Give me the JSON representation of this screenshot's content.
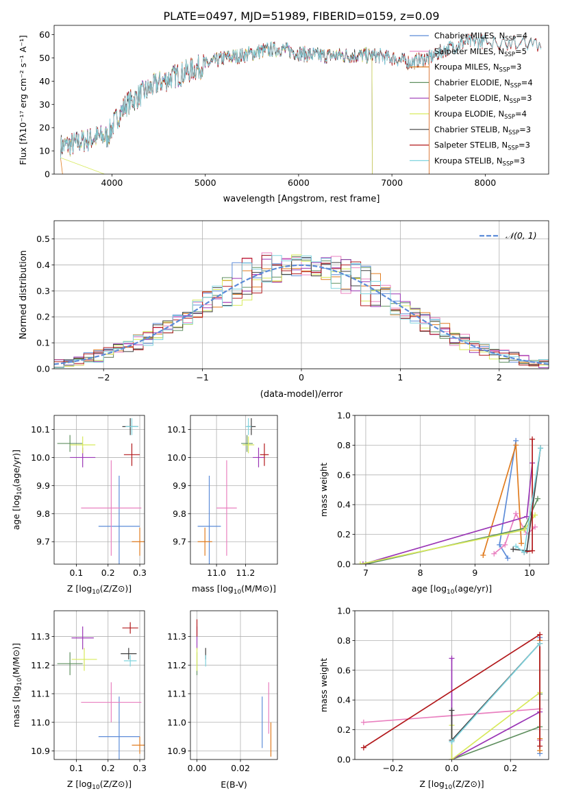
{
  "title": "PLATE=0497, MJD=51989, FIBERID=0159, z=0.09",
  "colors": {
    "chabrier_miles": "#5b8bd8",
    "salpeter_miles": "#e97fbf",
    "kroupa_miles": "#e07b1e",
    "chabrier_elodie": "#5f8f5f",
    "salpeter_elodie": "#9a35b5",
    "kroupa_elodie": "#d7e95a",
    "chabrier_stelib": "#3e3e3e",
    "salpeter_stelib": "#b2181b",
    "kroupa_stelib": "#7fd3de",
    "normal_curve": "#5b8bd8"
  },
  "chart_data": [
    {
      "id": "spectrum",
      "type": "line",
      "xlabel": "wavelength [Angstrom, rest frame]",
      "ylabel": "Flux [fλ10⁻¹⁷ erg cm⁻² s⁻¹ A⁻¹]",
      "xlim": [
        3380,
        8680
      ],
      "ylim": [
        0,
        64
      ],
      "xticks": [
        "4000",
        "5000",
        "6000",
        "7000",
        "8000"
      ],
      "xtick_values": [
        4000,
        5000,
        6000,
        7000,
        8000
      ],
      "yticks": [
        "0",
        "10",
        "20",
        "30",
        "40",
        "50",
        "60"
      ],
      "ytick_values": [
        0,
        10,
        20,
        30,
        40,
        50,
        60
      ],
      "grid": false,
      "legend_position": "top-right",
      "continuum": {
        "x": [
          3450,
          3600,
          3750,
          3850,
          3950,
          4050,
          4150,
          4300,
          4450,
          4600,
          4800,
          5000,
          5200,
          5400,
          5600,
          5800,
          6000,
          6200,
          6400,
          6600,
          6800,
          7000,
          7200,
          7400,
          7600,
          7800,
          8000,
          8200,
          8400,
          8600
        ],
        "y": [
          12,
          13,
          15,
          16,
          16,
          24,
          30,
          34,
          38,
          41,
          44,
          47,
          50,
          51,
          53,
          54,
          52,
          51,
          51,
          51,
          51,
          50,
          48,
          50,
          54,
          57,
          57,
          57,
          56,
          56
        ]
      },
      "series": [
        {
          "name": "Chabrier MILES, N_SSP=4",
          "label_main": "Chabrier MILES, N",
          "label_sub": "SSP",
          "label_end": "=4",
          "color_key": "chabrier_miles",
          "x_end": 7400
        },
        {
          "name": "Salpeter MILES, N_SSP=5",
          "label_main": "Salpeter MILES, N",
          "label_sub": "SSP",
          "label_end": "=5",
          "color_key": "salpeter_miles",
          "x_end": 7400
        },
        {
          "name": "Kroupa MILES, N_SSP=3",
          "label_main": "Kroupa MILES, N",
          "label_sub": "SSP",
          "label_end": "=3",
          "color_key": "kroupa_miles",
          "x_end": 7400
        },
        {
          "name": "Chabrier ELODIE, N_SSP=4",
          "label_main": "Chabrier ELODIE, N",
          "label_sub": "SSP",
          "label_end": "=4",
          "color_key": "chabrier_elodie",
          "x_end": 6790
        },
        {
          "name": "Salpeter ELODIE, N_SSP=3",
          "label_main": "Salpeter ELODIE, N",
          "label_sub": "SSP",
          "label_end": "=3",
          "color_key": "salpeter_elodie",
          "x_end": 6790
        },
        {
          "name": "Kroupa ELODIE, N_SSP=4",
          "label_main": "Kroupa ELODIE, N",
          "label_sub": "SSP",
          "label_end": "=4",
          "color_key": "kroupa_elodie",
          "x_end": 6790
        },
        {
          "name": "Chabrier STELIB, N_SSP=3",
          "label_main": "Chabrier STELIB, N",
          "label_sub": "SSP",
          "label_end": "=3",
          "color_key": "chabrier_stelib",
          "x_end": 8600
        },
        {
          "name": "Salpeter STELIB, N_SSP=3",
          "label_main": "Salpeter STELIB, N",
          "label_sub": "SSP",
          "label_end": "=3",
          "color_key": "salpeter_stelib",
          "x_end": 8600
        },
        {
          "name": "Kroupa STELIB, N_SSP=3",
          "label_main": "Kroupa STELIB, N",
          "label_sub": "SSP",
          "label_end": "=3",
          "color_key": "kroupa_stelib",
          "x_end": 8600
        }
      ]
    },
    {
      "id": "residuals",
      "type": "histogram",
      "xlabel": "(data-model)/error",
      "ylabel": "Normed distribution",
      "xlim": [
        -2.5,
        2.5
      ],
      "ylim": [
        0,
        0.57
      ],
      "xticks": [
        "−2",
        "−1",
        "0",
        "1",
        "2"
      ],
      "xtick_values": [
        -2,
        -1,
        0,
        1,
        2
      ],
      "yticks": [
        "0.0",
        "0.1",
        "0.2",
        "0.3",
        "0.4",
        "0.5"
      ],
      "ytick_values": [
        0,
        0.1,
        0.2,
        0.3,
        0.4,
        0.5
      ],
      "grid": true,
      "bin_width": 0.1,
      "legend": {
        "label": "𝒩(0, 1)",
        "position": "top-right"
      },
      "max_deviation": [
        0.02,
        0.02,
        0.025,
        0.03,
        0.03,
        0.03,
        0.035,
        0.05,
        0.06,
        0.075,
        0.1,
        0.085,
        0.06,
        0.05,
        0.05,
        0.05,
        0.07,
        0.09,
        0.11,
        0.09,
        0.06,
        0.05,
        0.05,
        0.045,
        0.04,
        0.035,
        0.03,
        0.03,
        0.025,
        0.02
      ]
    },
    {
      "id": "age_vs_Z",
      "type": "errorbar",
      "xlabel_main": "Z [log",
      "xlabel_sub": "10",
      "xlabel_end": "(Z/Z⊙)]",
      "ylabel_main": "age  [log",
      "ylabel_sub": "10",
      "ylabel_end": "(age/yr)]",
      "xlim": [
        0.03,
        0.315
      ],
      "ylim": [
        9.62,
        10.15
      ],
      "xticks": [
        "0.1",
        "0.2",
        "0.3"
      ],
      "xtick_values": [
        0.1,
        0.2,
        0.3
      ],
      "yticks": [
        "9.7",
        "9.8",
        "9.9",
        "10.0",
        "10.1"
      ],
      "ytick_values": [
        9.7,
        9.8,
        9.9,
        10.0,
        10.1
      ],
      "grid": true,
      "points": [
        {
          "color_key": "chabrier_miles",
          "x": 0.235,
          "xerr": 0.065,
          "y": 9.755,
          "yerr": 0.18
        },
        {
          "color_key": "salpeter_miles",
          "x": 0.21,
          "xerr": 0.095,
          "y": 9.82,
          "yerr": 0.17
        },
        {
          "color_key": "kroupa_miles",
          "x": 0.3,
          "xerr": 0.025,
          "y": 9.7,
          "yerr": 0.05
        },
        {
          "color_key": "chabrier_elodie",
          "x": 0.08,
          "xerr": 0.04,
          "y": 10.05,
          "yerr": 0.03
        },
        {
          "color_key": "salpeter_elodie",
          "x": 0.12,
          "xerr": 0.04,
          "y": 10.0,
          "yerr": 0.035
        },
        {
          "color_key": "kroupa_elodie",
          "x": 0.12,
          "xerr": 0.04,
          "y": 10.045,
          "yerr": 0.03
        },
        {
          "color_key": "chabrier_stelib",
          "x": 0.27,
          "xerr": 0.025,
          "y": 10.11,
          "yerr": 0.03
        },
        {
          "color_key": "salpeter_stelib",
          "x": 0.275,
          "xerr": 0.025,
          "y": 10.01,
          "yerr": 0.04
        },
        {
          "color_key": "kroupa_stelib",
          "x": 0.275,
          "xerr": 0.02,
          "y": 10.11,
          "yerr": 0.03
        }
      ]
    },
    {
      "id": "age_vs_mass",
      "type": "errorbar",
      "xlabel_main": "mass [log",
      "xlabel_sub": "10",
      "xlabel_end": "(M/M⊙)]",
      "xlim": [
        10.82,
        11.42
      ],
      "ylim": [
        9.62,
        10.15
      ],
      "xticks": [
        "11.0",
        "11.2"
      ],
      "xtick_values": [
        11.0,
        11.2
      ],
      "yticks": [
        "9.7",
        "9.8",
        "9.9",
        "10.0",
        "10.1"
      ],
      "ytick_values": [
        9.7,
        9.8,
        9.9,
        10.0,
        10.1
      ],
      "grid": true,
      "points": [
        {
          "color_key": "chabrier_miles",
          "x": 10.95,
          "xerr": 0.08,
          "y": 9.755,
          "yerr": 0.18
        },
        {
          "color_key": "salpeter_miles",
          "x": 11.07,
          "xerr": 0.07,
          "y": 9.82,
          "yerr": 0.17
        },
        {
          "color_key": "kroupa_miles",
          "x": 10.92,
          "xerr": 0.05,
          "y": 9.7,
          "yerr": 0.05
        },
        {
          "color_key": "chabrier_elodie",
          "x": 11.21,
          "xerr": 0.04,
          "y": 10.05,
          "yerr": 0.03
        },
        {
          "color_key": "salpeter_elodie",
          "x": 11.29,
          "xerr": 0.04,
          "y": 10.0,
          "yerr": 0.035
        },
        {
          "color_key": "kroupa_elodie",
          "x": 11.22,
          "xerr": 0.04,
          "y": 10.045,
          "yerr": 0.03
        },
        {
          "color_key": "chabrier_stelib",
          "x": 11.24,
          "xerr": 0.03,
          "y": 10.11,
          "yerr": 0.03
        },
        {
          "color_key": "salpeter_stelib",
          "x": 11.33,
          "xerr": 0.03,
          "y": 10.01,
          "yerr": 0.04
        },
        {
          "color_key": "kroupa_stelib",
          "x": 11.22,
          "xerr": 0.02,
          "y": 10.11,
          "yerr": 0.03
        }
      ]
    },
    {
      "id": "weight_vs_age",
      "type": "line",
      "xlabel_main": "age  [log",
      "xlabel_sub": "10",
      "xlabel_end": "(age/yr)]",
      "ylabel": "mass weight",
      "xlim": [
        6.8,
        10.35
      ],
      "ylim": [
        0,
        1.0
      ],
      "xticks": [
        "7",
        "8",
        "9",
        "10"
      ],
      "xtick_values": [
        7,
        8,
        9,
        10
      ],
      "yticks": [
        "0.0",
        "0.2",
        "0.4",
        "0.6",
        "0.8",
        "1.0"
      ],
      "ytick_values": [
        0,
        0.2,
        0.4,
        0.6,
        0.8,
        1.0
      ],
      "grid": true,
      "series": [
        {
          "color_key": "chabrier_miles",
          "x": [
            9.6,
            9.45,
            9.75
          ],
          "y": [
            0.04,
            0.13,
            0.83
          ]
        },
        {
          "color_key": "salpeter_miles",
          "x": [
            9.35,
            9.55,
            9.75,
            9.95,
            10.1
          ],
          "y": [
            0.07,
            0.13,
            0.34,
            0.2,
            0.25
          ]
        },
        {
          "color_key": "kroupa_miles",
          "x": [
            9.15,
            9.75,
            9.85
          ],
          "y": [
            0.06,
            0.8,
            0.14
          ]
        },
        {
          "color_key": "chabrier_elodie",
          "x": [
            7.0,
            9.9,
            10.15
          ],
          "y": [
            0.0,
            0.24,
            0.44
          ]
        },
        {
          "color_key": "salpeter_elodie",
          "x": [
            6.95,
            9.95,
            10.05
          ],
          "y": [
            0.0,
            0.32,
            0.68
          ]
        },
        {
          "color_key": "kroupa_elodie",
          "x": [
            6.9,
            9.9,
            10.1
          ],
          "y": [
            0.0,
            0.23,
            0.33
          ]
        },
        {
          "color_key": "chabrier_stelib",
          "x": [
            9.7,
            9.95,
            10.2
          ],
          "y": [
            0.1,
            0.09,
            0.78
          ]
        },
        {
          "color_key": "salpeter_stelib",
          "x": [
            9.9,
            10.05,
            10.05
          ],
          "y": [
            0.08,
            0.09,
            0.84
          ]
        },
        {
          "color_key": "kroupa_stelib",
          "x": [
            9.75,
            9.9,
            10.2
          ],
          "y": [
            0.12,
            0.08,
            0.78
          ]
        }
      ]
    },
    {
      "id": "mass_vs_Z",
      "type": "errorbar",
      "xlabel_main": "Z [log",
      "xlabel_sub": "10",
      "xlabel_end": "(Z/Z⊙)]",
      "ylabel_main": "mass [log",
      "ylabel_sub": "10",
      "ylabel_end": "(M/M⊙)]",
      "xlim": [
        0.03,
        0.315
      ],
      "ylim": [
        10.87,
        11.39
      ],
      "xticks": [
        "0.1",
        "0.2",
        "0.3"
      ],
      "xtick_values": [
        0.1,
        0.2,
        0.3
      ],
      "yticks": [
        "10.9",
        "11.0",
        "11.1",
        "11.2",
        "11.3"
      ],
      "ytick_values": [
        10.9,
        11.0,
        11.1,
        11.2,
        11.3
      ],
      "grid": true,
      "points": [
        {
          "color_key": "chabrier_miles",
          "x": 0.235,
          "xerr": 0.065,
          "y": 10.95,
          "yerr": 0.14
        },
        {
          "color_key": "salpeter_miles",
          "x": 0.21,
          "xerr": 0.095,
          "y": 11.07,
          "yerr": 0.07
        },
        {
          "color_key": "kroupa_miles",
          "x": 0.3,
          "xerr": 0.025,
          "y": 10.92,
          "yerr": 0.03
        },
        {
          "color_key": "chabrier_elodie",
          "x": 0.08,
          "xerr": 0.04,
          "y": 11.205,
          "yerr": 0.04
        },
        {
          "color_key": "salpeter_elodie",
          "x": 0.12,
          "xerr": 0.035,
          "y": 11.295,
          "yerr": 0.04
        },
        {
          "color_key": "kroupa_elodie",
          "x": 0.125,
          "xerr": 0.04,
          "y": 11.22,
          "yerr": 0.04
        },
        {
          "color_key": "chabrier_stelib",
          "x": 0.265,
          "xerr": 0.025,
          "y": 11.24,
          "yerr": 0.02
        },
        {
          "color_key": "salpeter_stelib",
          "x": 0.27,
          "xerr": 0.025,
          "y": 11.33,
          "yerr": 0.02
        },
        {
          "color_key": "kroupa_stelib",
          "x": 0.27,
          "xerr": 0.02,
          "y": 11.215,
          "yerr": 0.02
        }
      ]
    },
    {
      "id": "mass_vs_ebv",
      "type": "errorbar",
      "xlabel": "E(B-V)",
      "xlim": [
        -0.003,
        0.037
      ],
      "ylim": [
        10.87,
        11.39
      ],
      "xticks": [
        "0.00",
        "0.02"
      ],
      "xtick_values": [
        0.0,
        0.02
      ],
      "yticks": [
        "10.9",
        "11.0",
        "11.1",
        "11.2",
        "11.3"
      ],
      "ytick_values": [
        10.9,
        11.0,
        11.1,
        11.2,
        11.3
      ],
      "grid": true,
      "points": [
        {
          "color_key": "chabrier_miles",
          "x": 0.03,
          "xerr": 0,
          "y": 11.0,
          "yerr": 0.09
        },
        {
          "color_key": "salpeter_miles",
          "x": 0.033,
          "xerr": 0,
          "y": 11.05,
          "yerr": 0.09
        },
        {
          "color_key": "kroupa_miles",
          "x": 0.034,
          "xerr": 0,
          "y": 10.94,
          "yerr": 0.06
        },
        {
          "color_key": "chabrier_elodie",
          "x": 0.0,
          "xerr": 0,
          "y": 11.205,
          "yerr": 0.04
        },
        {
          "color_key": "salpeter_elodie",
          "x": 0.0,
          "xerr": 0,
          "y": 11.295,
          "yerr": 0.04
        },
        {
          "color_key": "kroupa_elodie",
          "x": 0.0,
          "xerr": 0,
          "y": 11.22,
          "yerr": 0.04
        },
        {
          "color_key": "chabrier_stelib",
          "x": 0.004,
          "xerr": 0,
          "y": 11.24,
          "yerr": 0.02
        },
        {
          "color_key": "salpeter_stelib",
          "x": 0.0,
          "xerr": 0,
          "y": 11.33,
          "yerr": 0.03
        },
        {
          "color_key": "kroupa_stelib",
          "x": 0.004,
          "xerr": 0,
          "y": 11.215,
          "yerr": 0.02
        }
      ]
    },
    {
      "id": "weight_vs_Z",
      "type": "line",
      "xlabel_main": "Z [log",
      "xlabel_sub": "10",
      "xlabel_end": "(Z/Z⊙)]",
      "ylabel": "mass weight",
      "xlim": [
        -0.33,
        0.33
      ],
      "ylim": [
        0,
        1.0
      ],
      "xticks": [
        "−0.2",
        "0.0",
        "0.2"
      ],
      "xtick_values": [
        -0.2,
        0.0,
        0.2
      ],
      "yticks": [
        "0.0",
        "0.2",
        "0.4",
        "0.6",
        "0.8",
        "1.0"
      ],
      "ytick_values": [
        0,
        0.2,
        0.4,
        0.6,
        0.8,
        1.0
      ],
      "grid": true,
      "series": [
        {
          "color_key": "chabrier_miles",
          "x": [
            0.3,
            0.3,
            0.3
          ],
          "y": [
            0.04,
            0.13,
            0.82
          ]
        },
        {
          "color_key": "salpeter_miles",
          "x": [
            -0.3,
            0.3,
            0.3
          ],
          "y": [
            0.25,
            0.34,
            0.13
          ]
        },
        {
          "color_key": "kroupa_miles",
          "x": [
            0.3,
            0.3,
            0.3
          ],
          "y": [
            0.06,
            0.8,
            0.14
          ]
        },
        {
          "color_key": "chabrier_elodie",
          "x": [
            0.0,
            0.3,
            0.3
          ],
          "y": [
            0.0,
            0.22,
            0.44
          ]
        },
        {
          "color_key": "salpeter_elodie",
          "x": [
            0.0,
            0.0,
            0.3
          ],
          "y": [
            0.68,
            0.0,
            0.32
          ]
        },
        {
          "color_key": "kroupa_elodie",
          "x": [
            0.0,
            0.0,
            0.3
          ],
          "y": [
            0.23,
            0.0,
            0.45
          ]
        },
        {
          "color_key": "chabrier_stelib",
          "x": [
            0.0,
            0.0,
            0.3
          ],
          "y": [
            0.33,
            0.13,
            0.78
          ]
        },
        {
          "color_key": "salpeter_stelib",
          "x": [
            -0.3,
            0.3,
            0.3
          ],
          "y": [
            0.08,
            0.84,
            0.09
          ]
        },
        {
          "color_key": "kroupa_stelib",
          "x": [
            0.0,
            0.0,
            0.3
          ],
          "y": [
            0.12,
            0.12,
            0.78
          ]
        }
      ]
    }
  ]
}
